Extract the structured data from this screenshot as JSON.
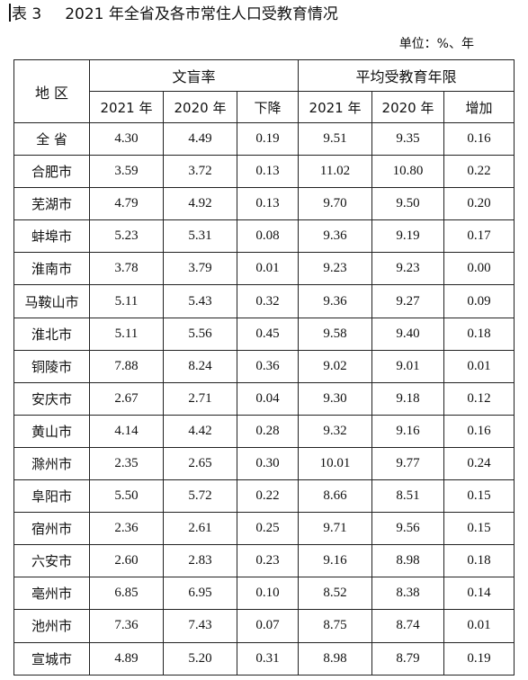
{
  "title": {
    "table_no": "表 3",
    "text": "2021 年全省及各市常住人口受教育情况"
  },
  "unit": "单位：%、年",
  "headers": {
    "region": "地  区",
    "illiteracy": "文盲率",
    "schooling": "平均受教育年限",
    "y2021": "2021 年",
    "y2020": "2020 年",
    "decline": "下降",
    "y2021b": "2021 年",
    "y2020b": "2020 年",
    "increase": "增加"
  },
  "rows": [
    {
      "region": "全  省",
      "ill2021": "4.30",
      "ill2020": "4.49",
      "decline": "0.19",
      "yrs2021": "9.51",
      "yrs2020": "9.35",
      "increase": "0.16"
    },
    {
      "region": "合肥市",
      "ill2021": "3.59",
      "ill2020": "3.72",
      "decline": "0.13",
      "yrs2021": "11.02",
      "yrs2020": "10.80",
      "increase": "0.22"
    },
    {
      "region": "芜湖市",
      "ill2021": "4.79",
      "ill2020": "4.92",
      "decline": "0.13",
      "yrs2021": "9.70",
      "yrs2020": "9.50",
      "increase": "0.20"
    },
    {
      "region": "蚌埠市",
      "ill2021": "5.23",
      "ill2020": "5.31",
      "decline": "0.08",
      "yrs2021": "9.36",
      "yrs2020": "9.19",
      "increase": "0.17"
    },
    {
      "region": "淮南市",
      "ill2021": "3.78",
      "ill2020": "3.79",
      "decline": "0.01",
      "yrs2021": "9.23",
      "yrs2020": "9.23",
      "increase": "0.00"
    },
    {
      "region": "马鞍山市",
      "ill2021": "5.11",
      "ill2020": "5.43",
      "decline": "0.32",
      "yrs2021": "9.36",
      "yrs2020": "9.27",
      "increase": "0.09"
    },
    {
      "region": "淮北市",
      "ill2021": "5.11",
      "ill2020": "5.56",
      "decline": "0.45",
      "yrs2021": "9.58",
      "yrs2020": "9.40",
      "increase": "0.18"
    },
    {
      "region": "铜陵市",
      "ill2021": "7.88",
      "ill2020": "8.24",
      "decline": "0.36",
      "yrs2021": "9.02",
      "yrs2020": "9.01",
      "increase": "0.01"
    },
    {
      "region": "安庆市",
      "ill2021": "2.67",
      "ill2020": "2.71",
      "decline": "0.04",
      "yrs2021": "9.30",
      "yrs2020": "9.18",
      "increase": "0.12"
    },
    {
      "region": "黄山市",
      "ill2021": "4.14",
      "ill2020": "4.42",
      "decline": "0.28",
      "yrs2021": "9.32",
      "yrs2020": "9.16",
      "increase": "0.16"
    },
    {
      "region": "滁州市",
      "ill2021": "2.35",
      "ill2020": "2.65",
      "decline": "0.30",
      "yrs2021": "10.01",
      "yrs2020": "9.77",
      "increase": "0.24"
    },
    {
      "region": "阜阳市",
      "ill2021": "5.50",
      "ill2020": "5.72",
      "decline": "0.22",
      "yrs2021": "8.66",
      "yrs2020": "8.51",
      "increase": "0.15"
    },
    {
      "region": "宿州市",
      "ill2021": "2.36",
      "ill2020": "2.61",
      "decline": "0.25",
      "yrs2021": "9.71",
      "yrs2020": "9.56",
      "increase": "0.15"
    },
    {
      "region": "六安市",
      "ill2021": "2.60",
      "ill2020": "2.83",
      "decline": "0.23",
      "yrs2021": "9.16",
      "yrs2020": "8.98",
      "increase": "0.18"
    },
    {
      "region": "亳州市",
      "ill2021": "6.85",
      "ill2020": "6.95",
      "decline": "0.10",
      "yrs2021": "8.52",
      "yrs2020": "8.38",
      "increase": "0.14"
    },
    {
      "region": "池州市",
      "ill2021": "7.36",
      "ill2020": "7.43",
      "decline": "0.07",
      "yrs2021": "8.75",
      "yrs2020": "8.74",
      "increase": "0.01"
    },
    {
      "region": "宣城市",
      "ill2021": "4.89",
      "ill2020": "5.20",
      "decline": "0.31",
      "yrs2021": "8.98",
      "yrs2020": "8.79",
      "increase": "0.19"
    }
  ]
}
